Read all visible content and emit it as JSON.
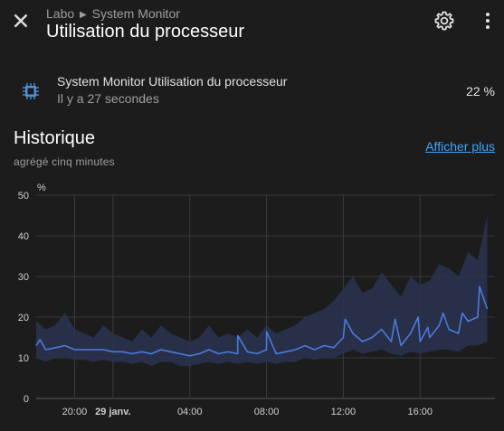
{
  "header": {
    "breadcrumb_area": "Labo",
    "breadcrumb_device": "System Monitor",
    "title": "Utilisation du processeur",
    "icons": [
      "close-icon",
      "gear-icon",
      "more-vert-icon"
    ]
  },
  "entity": {
    "icon": "cpu-chip-icon",
    "name": "System Monitor Utilisation du processeur",
    "last_changed": "Il y a 27 secondes",
    "value": "22 %"
  },
  "history": {
    "title": "Historique",
    "subtitle": "agrégé cinq minutes",
    "show_more": "Afficher plus"
  },
  "colors": {
    "background": "#1c1c1c",
    "line": "#4a7bdc",
    "band": "#2a3350",
    "link": "#3ea6ff"
  },
  "chart_data": {
    "type": "line",
    "ylabel": "%",
    "ylim": [
      0,
      50
    ],
    "yticks": [
      0,
      10,
      20,
      30,
      40,
      50
    ],
    "xticks": [
      {
        "label": "20:00",
        "bold": false,
        "hour": 2
      },
      {
        "label": "29 janv.",
        "bold": true,
        "hour": 4
      },
      {
        "label": "04:00",
        "bold": false,
        "hour": 8
      },
      {
        "label": "08:00",
        "bold": false,
        "hour": 12
      },
      {
        "label": "12:00",
        "bold": false,
        "hour": 16
      },
      {
        "label": "16:00",
        "bold": false,
        "hour": 20
      }
    ],
    "xrange_hours": [
      0,
      23.9
    ],
    "grid": true,
    "series": [
      {
        "step_hours": 0.5,
        "mean": [
          13,
          12,
          12.5,
          13,
          12,
          12,
          12,
          12,
          11.5,
          11.5,
          11,
          11.5,
          11,
          12,
          11.5,
          11,
          10.5,
          11,
          12,
          11,
          11.5,
          11,
          11.5,
          11,
          12,
          11,
          11.5,
          12,
          13,
          12,
          13,
          12.5,
          15,
          16,
          14,
          15,
          17,
          14,
          13,
          16,
          14,
          15,
          18,
          17,
          16,
          19,
          20,
          22
        ],
        "min": [
          10,
          9,
          10,
          10,
          9.5,
          9.5,
          9,
          9.5,
          9,
          9,
          8.5,
          9,
          8,
          9,
          9,
          8,
          8,
          8.5,
          9,
          8.5,
          9,
          8.5,
          9,
          8.5,
          9,
          8.5,
          9,
          9,
          10,
          9.5,
          10,
          10,
          11,
          12,
          11,
          11.5,
          12,
          11,
          10.5,
          11.5,
          11,
          11.5,
          12,
          12,
          11.5,
          13,
          13,
          14
        ],
        "max": [
          19,
          17,
          18,
          21,
          17,
          16,
          15,
          18,
          16,
          15,
          14,
          17,
          15,
          18,
          16,
          15,
          14,
          15,
          18,
          15,
          16,
          15,
          17,
          15,
          18,
          16,
          17,
          18,
          20,
          21,
          22,
          24,
          27,
          30,
          26,
          27,
          31,
          28,
          25,
          30,
          28,
          29,
          33,
          32,
          30,
          36,
          34,
          45
        ],
        "spikes": [
          {
            "hour": 0.2,
            "value": 14.5
          },
          {
            "hour": 10.5,
            "value": 15.5
          },
          {
            "hour": 12.0,
            "value": 16.5
          },
          {
            "hour": 16.1,
            "value": 19.5
          },
          {
            "hour": 18.7,
            "value": 19.5
          },
          {
            "hour": 19.9,
            "value": 20
          },
          {
            "hour": 20.4,
            "value": 17.5
          },
          {
            "hour": 21.2,
            "value": 21
          },
          {
            "hour": 22.2,
            "value": 21
          },
          {
            "hour": 23.1,
            "value": 27.5
          }
        ]
      }
    ]
  }
}
